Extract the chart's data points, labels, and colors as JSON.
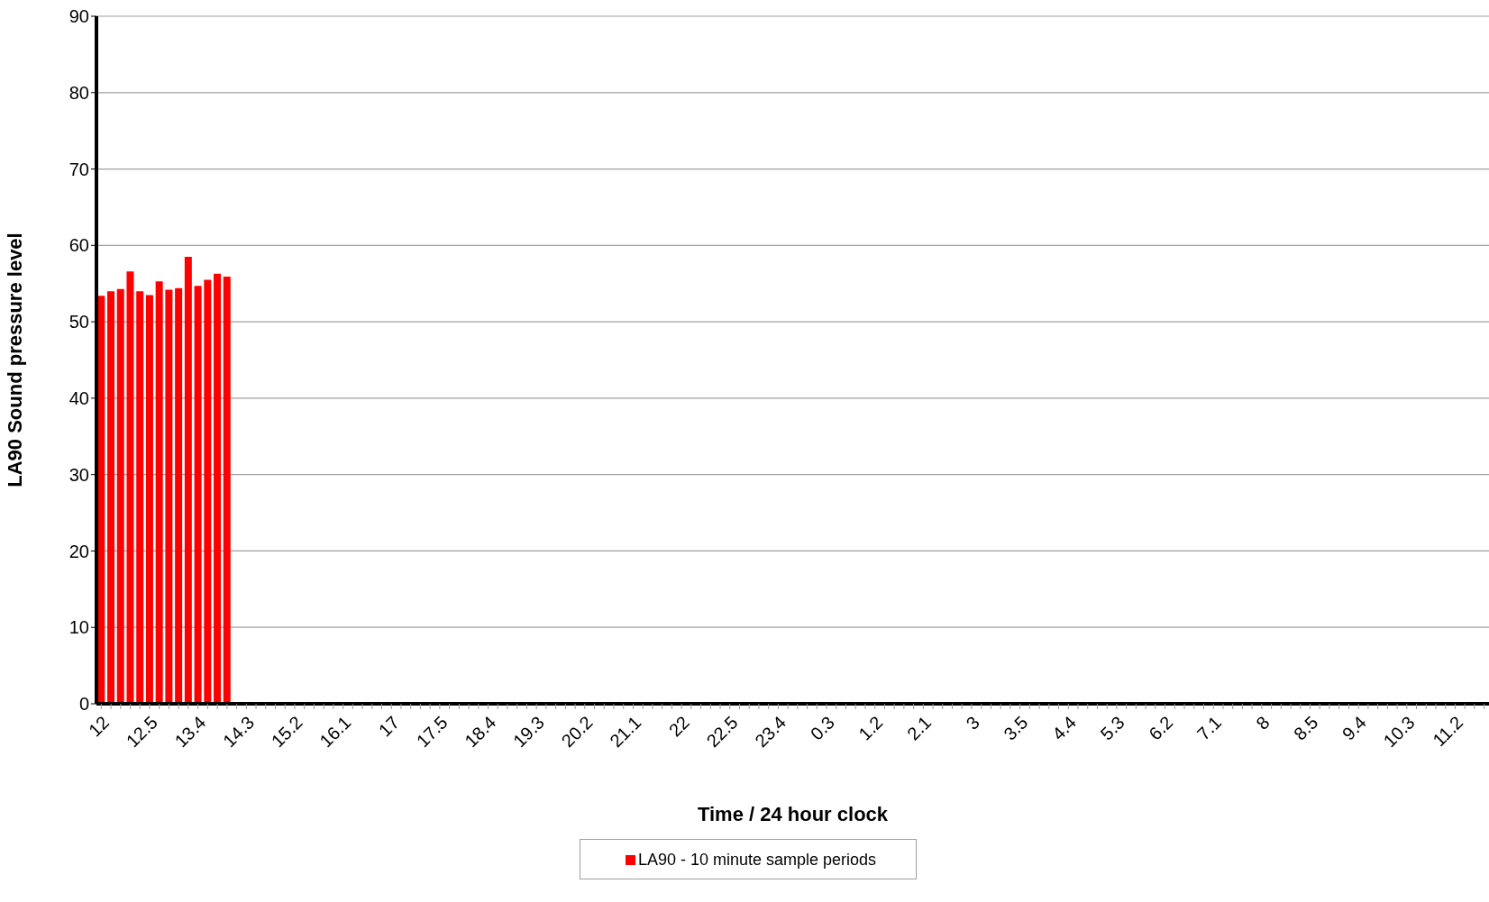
{
  "chart_data": {
    "type": "bar",
    "xlabel": "Time / 24 hour clock",
    "ylabel": "LA90 Sound pressure level",
    "categories": [
      "12",
      null,
      null,
      null,
      null,
      "12.5",
      null,
      null,
      null,
      null,
      "13.4",
      null,
      null,
      null,
      null,
      "14.3",
      null,
      null,
      null,
      null,
      "15.2",
      null,
      null,
      null,
      null,
      "16.1",
      null,
      null,
      null,
      null,
      "17",
      null,
      null,
      null,
      null,
      "17.5",
      null,
      null,
      null,
      null,
      "18.4",
      null,
      null,
      null,
      null,
      "19.3",
      null,
      null,
      null,
      null,
      "20.2",
      null,
      null,
      null,
      null,
      "21.1",
      null,
      null,
      null,
      null,
      "22",
      null,
      null,
      null,
      null,
      "22.5",
      null,
      null,
      null,
      null,
      "23.4",
      null,
      null,
      null,
      null,
      "0.3",
      null,
      null,
      null,
      null,
      "1.2",
      null,
      null,
      null,
      null,
      "2.1",
      null,
      null,
      null,
      null,
      "3",
      null,
      null,
      null,
      null,
      "3.5",
      null,
      null,
      null,
      null,
      "4.4",
      null,
      null,
      null,
      null,
      "5.3",
      null,
      null,
      null,
      null,
      "6.2",
      null,
      null,
      null,
      null,
      "7.1",
      null,
      null,
      null,
      null,
      "8",
      null,
      null,
      null,
      null,
      "8.5",
      null,
      null,
      null,
      null,
      "9.4",
      null,
      null,
      null,
      null,
      "10.3",
      null,
      null,
      null,
      null,
      "11.2",
      null,
      null,
      null
    ],
    "series": [
      {
        "name": "LA90 - 10 minute sample periods",
        "color": "#ff0000",
        "values": [
          53.4,
          54.0,
          54.3,
          56.6,
          54.0,
          53.5,
          55.3,
          54.2,
          54.4,
          58.5,
          54.7,
          55.5,
          56.3,
          55.9,
          null,
          null,
          null,
          null,
          null,
          null,
          null,
          null,
          null,
          null,
          null,
          null,
          null,
          null,
          null,
          null,
          null,
          null,
          null,
          null,
          null,
          null,
          null,
          null,
          null,
          null,
          null,
          null,
          null,
          null,
          null,
          null,
          null,
          null,
          null,
          null,
          null,
          null,
          null,
          null,
          null,
          null,
          null,
          null,
          null,
          null,
          null,
          null,
          null,
          null,
          null,
          null,
          null,
          null,
          null,
          null,
          null,
          null,
          null,
          null,
          null,
          null,
          null,
          null,
          null,
          null,
          null,
          null,
          null,
          null,
          null,
          null,
          null,
          null,
          null,
          null,
          null,
          null,
          null,
          null,
          null,
          null,
          null,
          null,
          null,
          null,
          null,
          null,
          null,
          null,
          null,
          null,
          null,
          null,
          null,
          null,
          null,
          null,
          null,
          null,
          null,
          null,
          null,
          null,
          null,
          null,
          null,
          null,
          null,
          null,
          null,
          null,
          null,
          null,
          null,
          null,
          null,
          null,
          null,
          null,
          null,
          null,
          null,
          null,
          null,
          null,
          null,
          null,
          null,
          null
        ]
      }
    ],
    "ylim": [
      0,
      90
    ],
    "yticks": [
      0,
      10,
      20,
      30,
      40,
      50,
      60,
      70,
      80,
      90
    ],
    "grid": "y",
    "legend": "bottom"
  }
}
